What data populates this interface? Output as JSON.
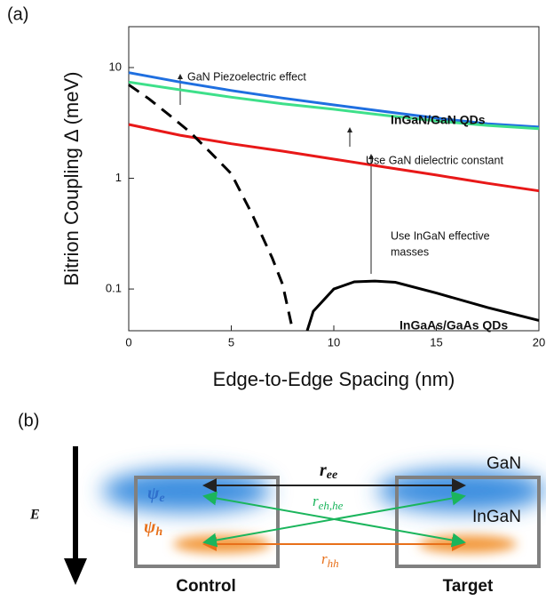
{
  "chart_data": {
    "type": "line",
    "panel_label": "(a)",
    "y_label": "Bitrion Coupling Δ (meV)",
    "x_label": "Edge-to-Edge Spacing (nm)",
    "log_y": true,
    "xlim": [
      0,
      20
    ],
    "ylim": [
      0.042,
      23.4
    ],
    "xticks": [
      0,
      5,
      10,
      15,
      20
    ],
    "yticks": [
      0.1,
      1,
      10
    ],
    "series": [
      {
        "color": "#1f6fe0",
        "dash": false,
        "x": [
          0,
          2.5,
          5,
          7.5,
          10,
          12.5,
          15,
          17.5,
          20
        ],
        "values": [
          9.0,
          7.4,
          6.2,
          5.3,
          4.6,
          4.0,
          3.5,
          3.1,
          2.9
        ]
      },
      {
        "color": "#3ee08a",
        "dash": false,
        "x": [
          0,
          2.5,
          5,
          7.5,
          10,
          12.5,
          15,
          17.5,
          20
        ],
        "values": [
          7.4,
          6.3,
          5.4,
          4.7,
          4.2,
          3.7,
          3.3,
          3.0,
          2.8
        ]
      },
      {
        "color": "#e81818",
        "dash": false,
        "x": [
          0,
          2.5,
          5,
          7.5,
          10,
          12.5,
          15,
          17.5,
          20
        ],
        "values": [
          3.06,
          2.45,
          2.05,
          1.76,
          1.49,
          1.26,
          1.07,
          0.9,
          0.77
        ]
      },
      {
        "color": "#000000",
        "dash": true,
        "x": [
          0,
          1,
          2,
          3,
          4,
          5,
          6,
          7,
          7.5,
          8
        ],
        "values": [
          7.0,
          5.2,
          3.7,
          2.6,
          1.7,
          1.1,
          0.48,
          0.19,
          0.11,
          0.042
        ]
      },
      {
        "color": "#000000",
        "dash": false,
        "x": [
          8.7,
          9,
          10,
          11,
          12,
          13,
          15,
          17.5,
          20
        ],
        "values": [
          0.042,
          0.063,
          0.1,
          0.116,
          0.118,
          0.115,
          0.092,
          0.068,
          0.052
        ]
      }
    ],
    "annotations": [
      {
        "lines": [
          "GaN Piezoelectric effect"
        ],
        "bold": false
      },
      {
        "lines": [
          "InGaN/GaN QDs"
        ],
        "bold": true
      },
      {
        "lines": [
          "Use GaN dielectric constant"
        ],
        "bold": false
      },
      {
        "lines": [
          "Use InGaN effective",
          "masses"
        ],
        "bold": false
      },
      {
        "lines": [
          "InGaAs/GaAs QDs"
        ],
        "bold": true
      }
    ]
  },
  "diagram": {
    "panel_label": "(b)",
    "field": "E",
    "r_ee": {
      "symbol": "r",
      "sub": "ee"
    },
    "r_eh": {
      "symbol": "r",
      "sub": "eh,he"
    },
    "r_hh": {
      "symbol": "r",
      "sub": "hh"
    },
    "psi_e": {
      "symbol": "ψ",
      "sub": "e"
    },
    "psi_h": {
      "symbol": "ψ",
      "sub": "h"
    },
    "barrier": "GaN",
    "well": "InGaN",
    "left": "Control",
    "right": "Target"
  }
}
